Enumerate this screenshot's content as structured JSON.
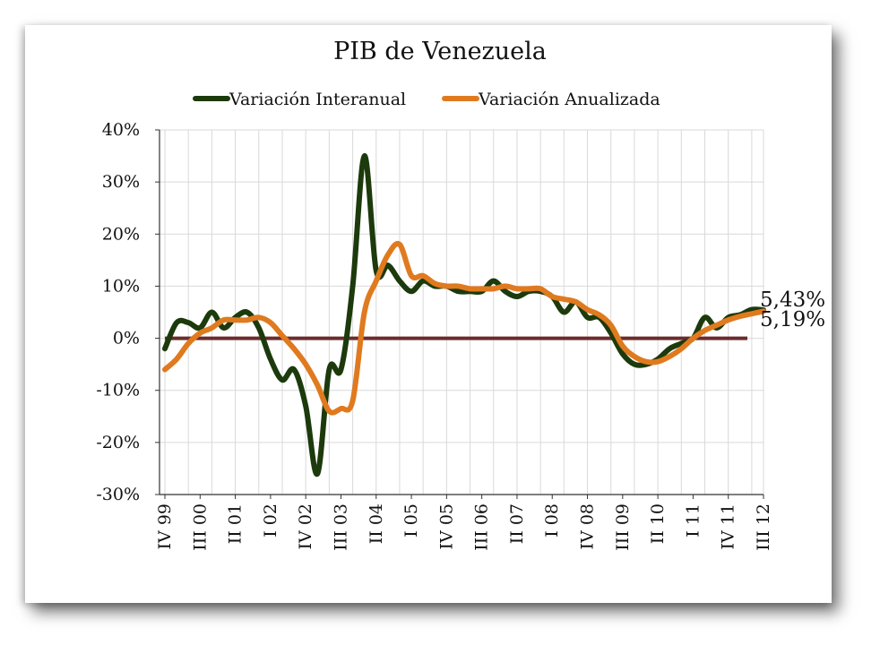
{
  "chart_data": {
    "type": "line",
    "title": "PIB de Venezuela",
    "xlabel": "",
    "ylabel": "",
    "ylim": [
      -30,
      40
    ],
    "yticks": [
      40,
      30,
      20,
      10,
      0,
      -10,
      -20,
      -30
    ],
    "ytick_labels": [
      "40%",
      "30%",
      "20%",
      "10%",
      "0%",
      "-10%",
      "-20%",
      "-30%"
    ],
    "xtick_labels": [
      "IV 99",
      "III 00",
      "II 01",
      "I 02",
      "IV 02",
      "III 03",
      "II 04",
      "I 05",
      "IV 05",
      "III 06",
      "II 07",
      "I 08",
      "IV 08",
      "III 09",
      "II 10",
      "I 11",
      "IV 11",
      "III 12"
    ],
    "xtick_index": [
      0,
      3,
      6,
      9,
      12,
      15,
      18,
      21,
      24,
      27,
      30,
      33,
      36,
      39,
      42,
      45,
      48,
      51
    ],
    "grid": true,
    "legend": "top",
    "series": [
      {
        "name": "Variación Interanual",
        "color": "#1c3a0c",
        "values": [
          -2,
          3,
          3,
          2,
          5,
          2,
          4,
          5,
          2,
          -4,
          -8,
          -6,
          -13,
          -26,
          -6,
          -6,
          10,
          35,
          13,
          14,
          11,
          9,
          11,
          10,
          10,
          9,
          9,
          9,
          11,
          9,
          8,
          9,
          9,
          8,
          5,
          7,
          4,
          4,
          1,
          -3,
          -5,
          -5,
          -4,
          -2,
          -1,
          0,
          4,
          2,
          4,
          4.5,
          5.5,
          5.43
        ]
      },
      {
        "name": "Variación Anualizada",
        "color": "#e07a1f",
        "values": [
          -6,
          -4,
          -1,
          1,
          2,
          3.5,
          3.5,
          3.5,
          4,
          3,
          0.5,
          -2,
          -5,
          -9,
          -14,
          -13.5,
          -12,
          5,
          11,
          16,
          18,
          12,
          12,
          10.5,
          10,
          10,
          9.5,
          9.5,
          9.5,
          10,
          9.5,
          9.5,
          9.5,
          8,
          7.5,
          7,
          5.5,
          4.5,
          2.5,
          -1.5,
          -3.5,
          -4.5,
          -4.5,
          -3.5,
          -2,
          0,
          1.5,
          2.5,
          3.5,
          4.2,
          4.7,
          5.19
        ]
      }
    ],
    "zero_line_color": "#6b2c2c",
    "end_labels": [
      "5,43%",
      "5,19%"
    ]
  }
}
